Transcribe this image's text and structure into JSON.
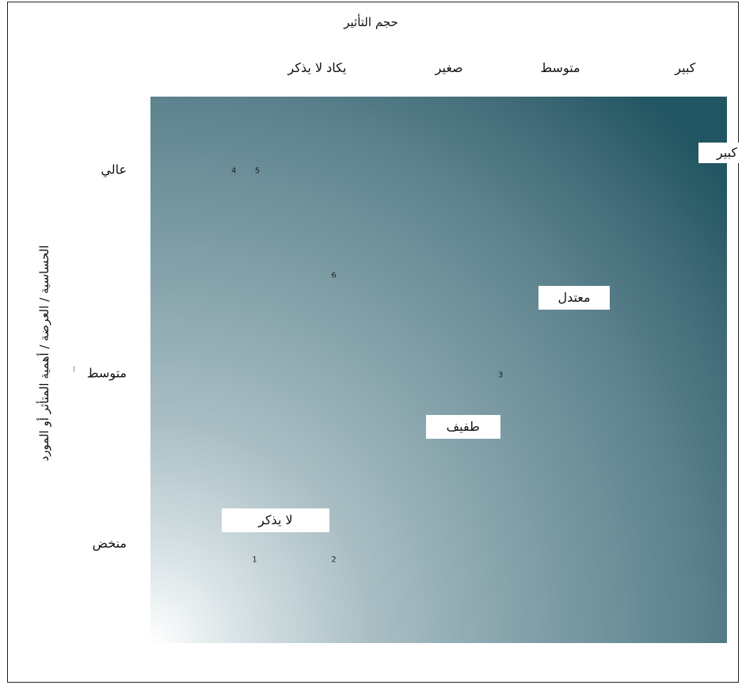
{
  "chart_data": {
    "type": "scatter",
    "title": "",
    "xlabel": "حجم التأثير",
    "ylabel": "الحساسية / العرضة / أهمية المتأثر أو المورد",
    "x_categories": [
      "يكاد لا يذكر",
      "صغير",
      "متوسط",
      "كبير"
    ],
    "y_categories": [
      "منخض",
      "متوسط",
      "عالي"
    ],
    "zones": [
      {
        "label": "كبير",
        "x": 4.85,
        "y": 3.05
      },
      {
        "label": "معتدل",
        "x": 3.75,
        "y": 2.36
      },
      {
        "label": "طفيف",
        "x": 2.95,
        "y": 1.74
      },
      {
        "label": "لا يذكر",
        "x": 1.6,
        "y": 1.29
      }
    ],
    "points": [
      {
        "label": "1",
        "x": 1.45,
        "y": 1.1
      },
      {
        "label": "2",
        "x": 2.02,
        "y": 1.1
      },
      {
        "label": "3",
        "x": 3.22,
        "y": 1.99
      },
      {
        "label": "4",
        "x": 1.3,
        "y": 2.97
      },
      {
        "label": "5",
        "x": 1.47,
        "y": 2.97
      },
      {
        "label": "6",
        "x": 2.02,
        "y": 2.47
      }
    ],
    "xlim": [
      0.7,
      4.85
    ],
    "ylim": [
      0.7,
      3.33
    ],
    "grid": false,
    "background": "gradient from white (bottom-left) to dark teal (top-right)",
    "colors": {
      "gradient_light": "#ffffff",
      "gradient_dark": "#215562",
      "label_box": "#ffffff"
    }
  }
}
